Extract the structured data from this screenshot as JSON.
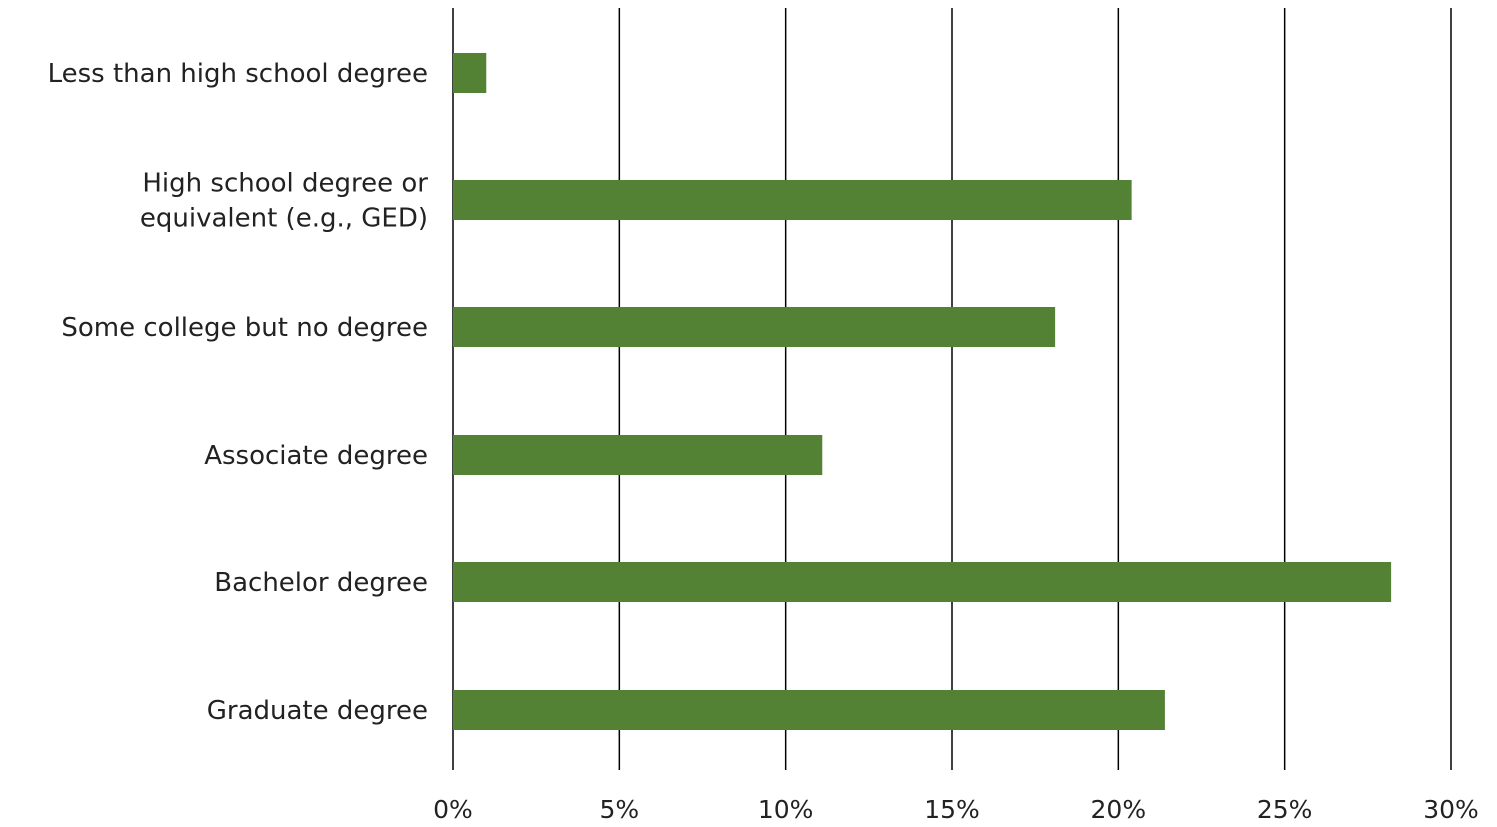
{
  "chart_data": {
    "type": "bar",
    "orientation": "horizontal",
    "categories": [
      [
        "Less than high school degree"
      ],
      [
        "High school degree or",
        "equivalent (e.g., GED)"
      ],
      [
        "Some college but no degree"
      ],
      [
        "Associate degree"
      ],
      [
        "Bachelor degree"
      ],
      [
        "Graduate degree"
      ]
    ],
    "values": [
      1.0,
      20.4,
      18.1,
      11.1,
      28.2,
      21.4
    ],
    "xlim": [
      0,
      30
    ],
    "xticks": [
      0,
      5,
      10,
      15,
      20,
      25,
      30
    ],
    "tick_suffix": "%",
    "title": "",
    "xlabel": "",
    "ylabel": "",
    "grid": true,
    "legend": "none",
    "bar_color": "#548235",
    "grid_color": "#000000"
  }
}
